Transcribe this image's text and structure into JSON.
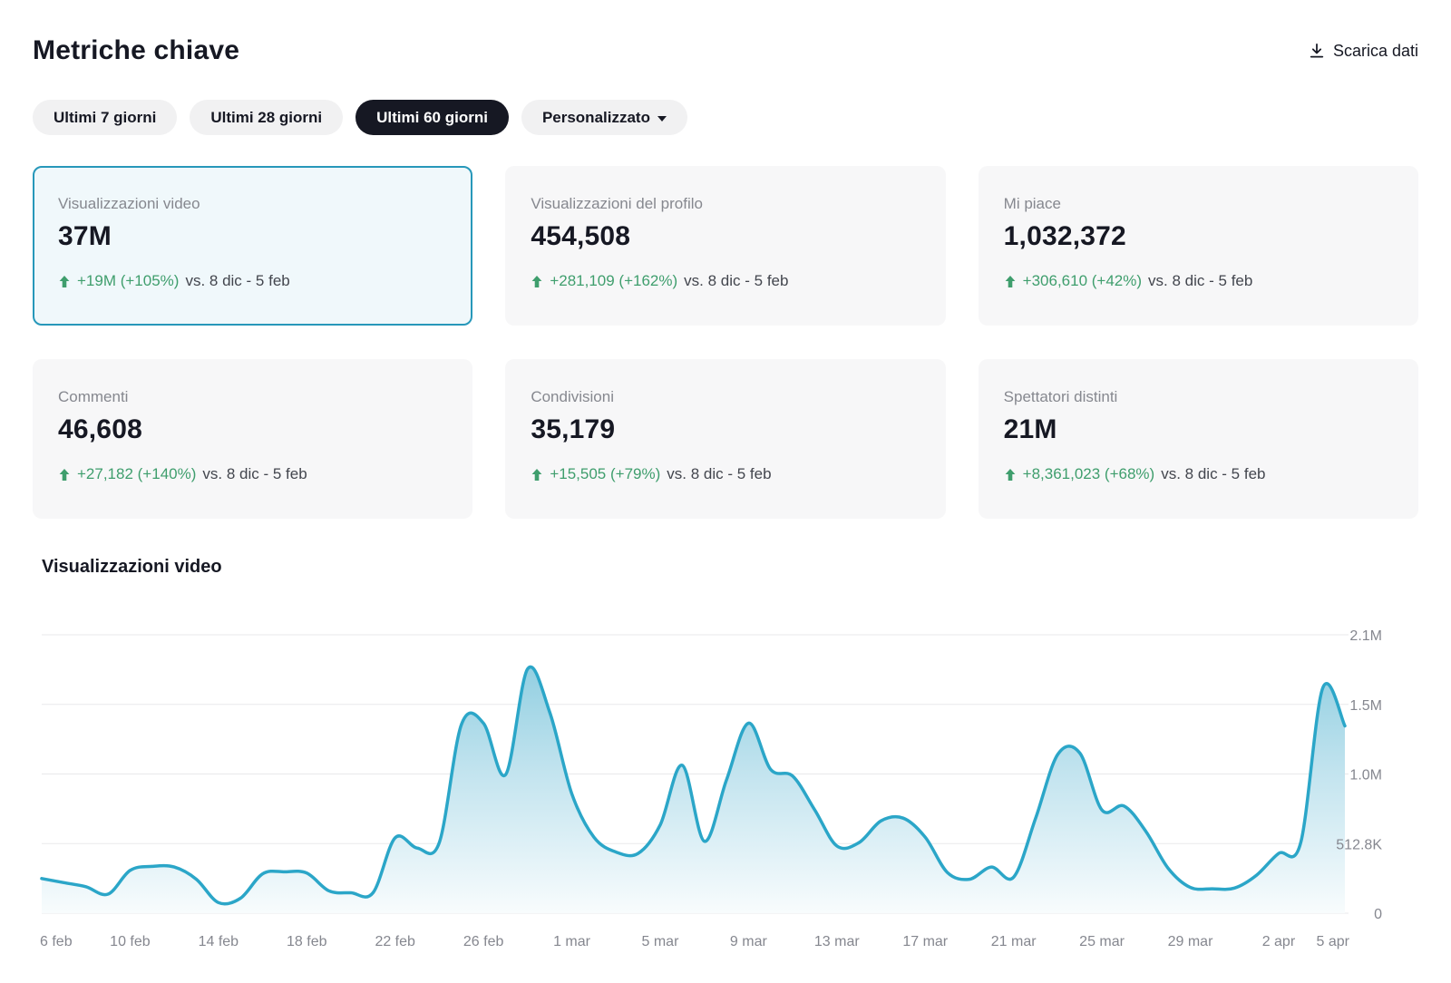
{
  "header": {
    "title": "Metriche chiave",
    "download_label": "Scarica dati"
  },
  "tabs": [
    {
      "label": "Ultimi 7 giorni",
      "active": false
    },
    {
      "label": "Ultimi 28 giorni",
      "active": false
    },
    {
      "label": "Ultimi 60 giorni",
      "active": true
    },
    {
      "label": "Personalizzato",
      "active": false,
      "has_caret": true
    }
  ],
  "cards": [
    {
      "label": "Visualizzazioni video",
      "value": "37M",
      "delta": "+19M (+105%)",
      "vs": "vs.  8 dic - 5 feb",
      "selected": true
    },
    {
      "label": "Visualizzazioni del profilo",
      "value": "454,508",
      "delta": "+281,109 (+162%)",
      "vs": "vs.  8 dic - 5 feb",
      "selected": false
    },
    {
      "label": "Mi piace",
      "value": "1,032,372",
      "delta": "+306,610 (+42%)",
      "vs": "vs.  8 dic - 5 feb",
      "selected": false
    },
    {
      "label": "Commenti",
      "value": "46,608",
      "delta": "+27,182 (+140%)",
      "vs": "vs.  8 dic - 5 feb",
      "selected": false
    },
    {
      "label": "Condivisioni",
      "value": "35,179",
      "delta": "+15,505 (+79%)",
      "vs": "vs.  8 dic - 5 feb",
      "selected": false
    },
    {
      "label": "Spettatori distinti",
      "value": "21M",
      "delta": "+8,361,023 (+68%)",
      "vs": "vs.  8 dic - 5 feb",
      "selected": false
    }
  ],
  "chart_section": {
    "title": "Visualizzazioni video"
  },
  "colors": {
    "accent_teal": "#2ba6c8",
    "area_top": "#84c9dd",
    "area_mid": "#c3e4ef",
    "area_bottom": "#f8fcfd",
    "positive_green": "#3f9e6d",
    "selected_card_border": "#2798ba",
    "selected_card_bg": "#f0f8fb",
    "dark_text": "#161823",
    "muted_text": "#85878f",
    "gridline": "#e9e9eb"
  },
  "chart_data": {
    "type": "area",
    "title": "Visualizzazioni video",
    "xlabel": "",
    "ylabel": "",
    "grid": "horizontal",
    "legend": "none",
    "x_start": "6 feb",
    "x_end": "5 apr",
    "x_unit": "day",
    "x_tick_labels": [
      "6 feb",
      "10 feb",
      "14 feb",
      "18 feb",
      "22 feb",
      "26 feb",
      "1 mar",
      "5 mar",
      "9 mar",
      "13 mar",
      "17 mar",
      "21 mar",
      "25 mar",
      "29 mar",
      "2 apr",
      "5 apr"
    ],
    "x_tick_day_index": [
      0,
      4,
      8,
      12,
      16,
      20,
      24,
      28,
      32,
      36,
      40,
      44,
      48,
      52,
      56,
      59
    ],
    "y_ticks": [
      {
        "value": 0,
        "label": "0"
      },
      {
        "value": 512800,
        "label": "512.8K"
      },
      {
        "value": 1025600,
        "label": "1.0M"
      },
      {
        "value": 1538400,
        "label": "1.5M"
      },
      {
        "value": 2051200,
        "label": "2.1M"
      }
    ],
    "ylim": [
      0,
      2051200
    ],
    "values": [
      255000,
      225000,
      195000,
      140000,
      315000,
      345000,
      340000,
      250000,
      78000,
      110000,
      290000,
      305000,
      295000,
      165000,
      150000,
      150000,
      555000,
      480000,
      520000,
      1390000,
      1400000,
      1020000,
      1800000,
      1480000,
      880000,
      560000,
      450000,
      440000,
      650000,
      1090000,
      530000,
      980000,
      1400000,
      1060000,
      1010000,
      760000,
      495000,
      520000,
      680000,
      700000,
      560000,
      300000,
      250000,
      340000,
      265000,
      700000,
      1170000,
      1180000,
      760000,
      790000,
      600000,
      330000,
      190000,
      180000,
      185000,
      280000,
      440000,
      520000,
      1660000,
      1380000
    ]
  }
}
